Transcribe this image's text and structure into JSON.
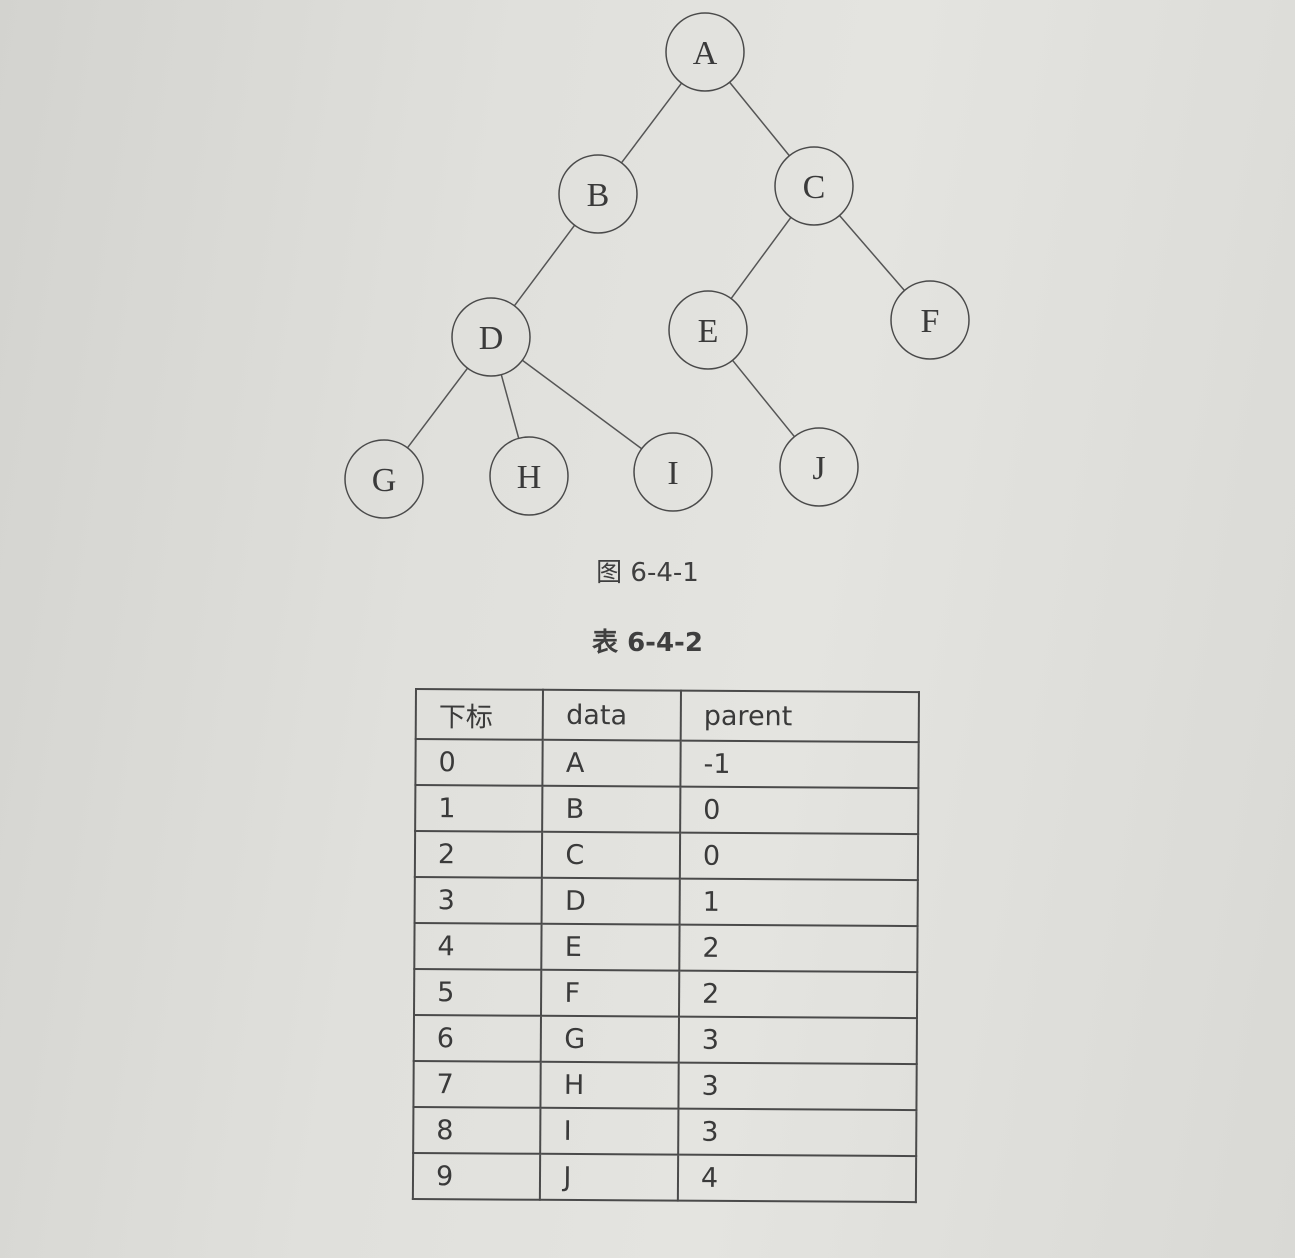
{
  "tree": {
    "nodes": [
      {
        "id": "A",
        "label": "A"
      },
      {
        "id": "B",
        "label": "B"
      },
      {
        "id": "C",
        "label": "C"
      },
      {
        "id": "D",
        "label": "D"
      },
      {
        "id": "E",
        "label": "E"
      },
      {
        "id": "F",
        "label": "F"
      },
      {
        "id": "G",
        "label": "G"
      },
      {
        "id": "H",
        "label": "H"
      },
      {
        "id": "I",
        "label": "I"
      },
      {
        "id": "J",
        "label": "J"
      }
    ],
    "edges": [
      [
        "A",
        "B"
      ],
      [
        "A",
        "C"
      ],
      [
        "B",
        "D"
      ],
      [
        "C",
        "E"
      ],
      [
        "C",
        "F"
      ],
      [
        "D",
        "G"
      ],
      [
        "D",
        "H"
      ],
      [
        "D",
        "I"
      ],
      [
        "E",
        "J"
      ]
    ]
  },
  "figure_caption": "图 6-4-1",
  "table_caption": "表 6-4-2",
  "table": {
    "headers": [
      "下标",
      "data",
      "parent"
    ],
    "rows": [
      [
        "0",
        "A",
        "-1"
      ],
      [
        "1",
        "B",
        "0"
      ],
      [
        "2",
        "C",
        "0"
      ],
      [
        "3",
        "D",
        "1"
      ],
      [
        "4",
        "E",
        "2"
      ],
      [
        "5",
        "F",
        "2"
      ],
      [
        "6",
        "G",
        "3"
      ],
      [
        "7",
        "H",
        "3"
      ],
      [
        "8",
        "I",
        "3"
      ],
      [
        "9",
        "J",
        "4"
      ]
    ]
  }
}
